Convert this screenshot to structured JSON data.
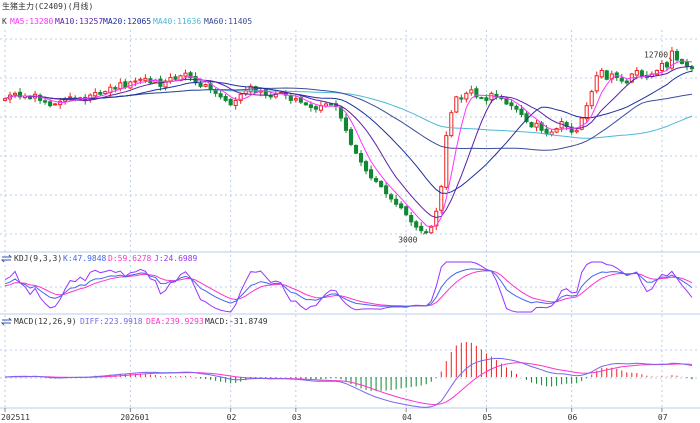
{
  "header": {
    "title": "生猪主力(C2409)(月线)",
    "ma_prefix": "K",
    "ma5": "MA5:13280",
    "ma10": "MA10:13257",
    "ma20": "MA20:12065",
    "ma40": "MA40:11636",
    "ma60": "MA60:11405"
  },
  "kdj_panel": {
    "title": "KDJ(9,3,3)",
    "k": "K:47.9848",
    "d": "D:59.6278",
    "j": "J:24.6989"
  },
  "macd_panel": {
    "title": "MACD(12,26,9)",
    "diff": "DIFF:223.9918",
    "dea": "DEA:239.9293",
    "macd": "MACD:-31.8749"
  },
  "colors": {
    "up": "#ee2222",
    "down": "#118833",
    "ma5": "#ff33ff",
    "ma10": "#5b1fa8",
    "ma20": "#1d2ea0",
    "ma40": "#4fb8d6",
    "ma60": "#3c4d9a",
    "k": "#4466ee",
    "d": "#ff33cc",
    "j": "#9933ff",
    "diff": "#7766ee",
    "dea": "#ff33cc",
    "grid": "#b8cce8"
  },
  "chart_data": {
    "type": "candlestick",
    "x_ticks": [
      "202511",
      "202601",
      "02",
      "03",
      "04",
      "05",
      "06",
      "07"
    ],
    "x_tick_index": [
      0,
      25,
      45,
      58,
      80,
      96,
      113,
      131
    ],
    "price_range": [
      2000,
      14500
    ],
    "annotations": [
      {
        "text": "12700",
        "index": 133,
        "price": 12700
      },
      {
        "text": "3000",
        "index": 84,
        "price": 3000
      }
    ],
    "closes": [
      10600,
      10800,
      10900,
      10700,
      10750,
      10600,
      10850,
      10500,
      10400,
      10200,
      10300,
      10450,
      10600,
      10700,
      10550,
      10650,
      10500,
      10800,
      10950,
      10850,
      11000,
      11250,
      11150,
      11500,
      11250,
      11550,
      11600,
      11700,
      11750,
      11500,
      11650,
      11300,
      11600,
      11800,
      11700,
      11900,
      12050,
      11800,
      11500,
      11300,
      11400,
      11150,
      10900,
      10700,
      10500,
      10250,
      10500,
      10850,
      11050,
      11300,
      10950,
      11050,
      10800,
      10700,
      10900,
      10950,
      10800,
      10500,
      10600,
      10400,
      10250,
      10100,
      10000,
      10200,
      10300,
      10250,
      10150,
      9500,
      8800,
      8000,
      7500,
      7000,
      6500,
      6100,
      5900,
      5600,
      5200,
      4900,
      4600,
      4400,
      4000,
      3600,
      3300,
      3100,
      3000,
      3350,
      4200,
      5600,
      8500,
      9800,
      10700,
      10600,
      10900,
      11100,
      10700,
      10650,
      10500,
      10900,
      10700,
      10600,
      10300,
      10200,
      10000,
      9700,
      9300,
      9000,
      9200,
      8800,
      8600,
      8700,
      8900,
      9300,
      9000,
      8700,
      8800,
      9500,
      10200,
      11000,
      11900,
      12200,
      11700,
      12000,
      11800,
      11600,
      11500,
      12000,
      12200,
      11900,
      11800,
      12000,
      12200,
      12600,
      12400,
      13300,
      12800,
      12600,
      12450,
      12300
    ]
  }
}
